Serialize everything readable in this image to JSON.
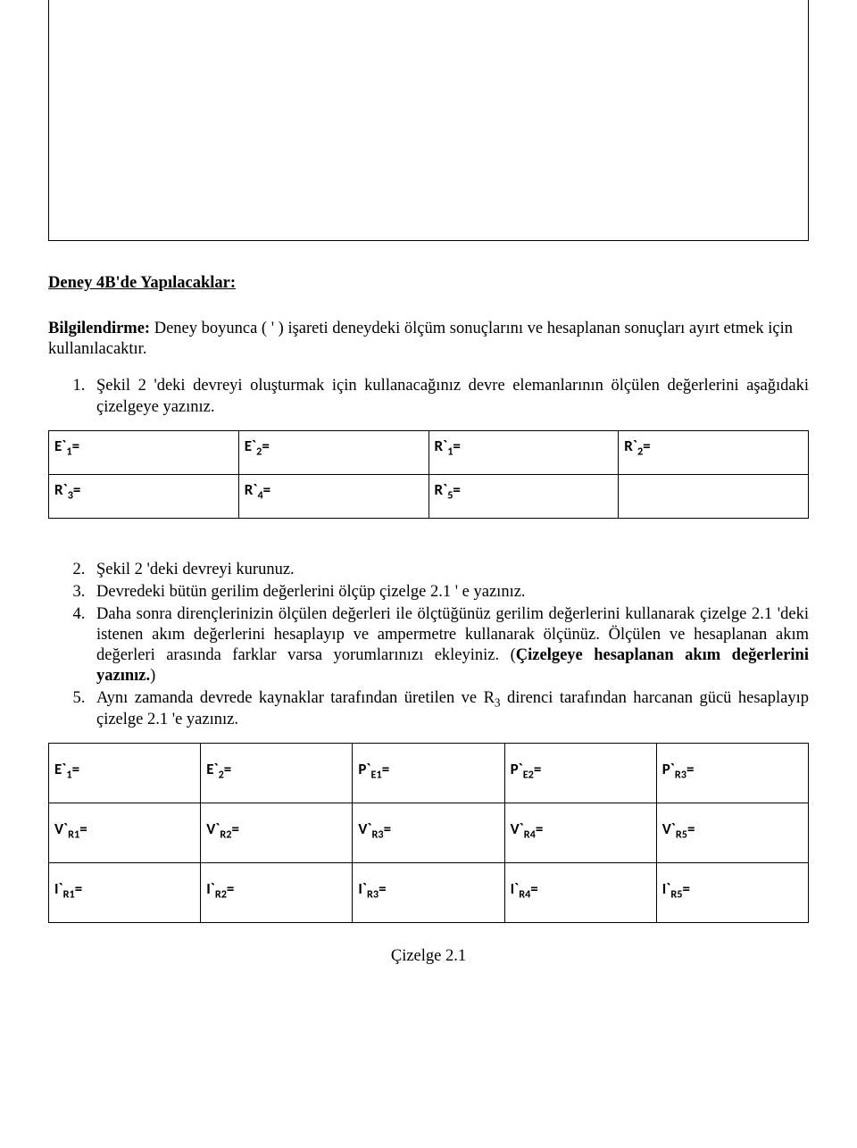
{
  "section_title": "Deney 4B'de Yapılacaklar:",
  "info": {
    "label": "Bilgilendirme:",
    "text": " Deney boyunca ( ' ) işareti deneydeki ölçüm sonuçlarını ve hesaplanan sonuçları ayırt etmek için kullanılacaktır."
  },
  "steps": {
    "s1": "Şekil 2 'deki devreyi oluşturmak için kullanacağınız devre elemanlarının ölçülen değerlerini aşağıdaki çizelgeye yazınız.",
    "s2": "Şekil 2 'deki devreyi kurunuz.",
    "s3": "Devredeki bütün gerilim değerlerini ölçüp çizelge 2.1 ' e yazınız.",
    "s4a": "Daha sonra dirençlerinizin ölçülen değerleri ile ölçtüğünüz gerilim değerlerini kullanarak çizelge 2.1 'deki istenen akım değerlerini hesaplayıp ve ampermetre kullanarak ölçünüz. Ölçülen ve hesaplanan akım değerleri arasında farklar varsa yorumlarınızı ekleyiniz. (",
    "s4b": "Çizelgeye hesaplanan akım değerlerini yazınız.",
    "s4c": ")",
    "s5a": "Aynı zamanda devrede kaynaklar tarafından üretilen ve R",
    "s5sub": "3",
    "s5b": " direnci tarafından harcanan gücü hesaplayıp çizelge 2.1 'e yazınız."
  },
  "table1": {
    "E1": "E`₁=",
    "E2": "E`₂=",
    "R1": "R`₁=",
    "R2": "R`₂=",
    "R3": "R`₃=",
    "R4": "R`₄=",
    "R5": "R`₅="
  },
  "table2": {
    "E1": "E`₁=",
    "E2": "E`₂=",
    "PE1": "P`E1=",
    "PE2": "P`E2=",
    "PR3": "P`R3=",
    "VR1": "V`R1=",
    "VR2": "V`R2=",
    "VR3": "V`R3=",
    "VR4": "V`R4=",
    "VR5": "V`R5=",
    "IR1": "I`R1=",
    "IR2": "I`R2=",
    "IR3": "I`R3=",
    "IR4": "I`R4=",
    "IR5": "I`R5="
  },
  "caption": "Çizelge 2.1"
}
